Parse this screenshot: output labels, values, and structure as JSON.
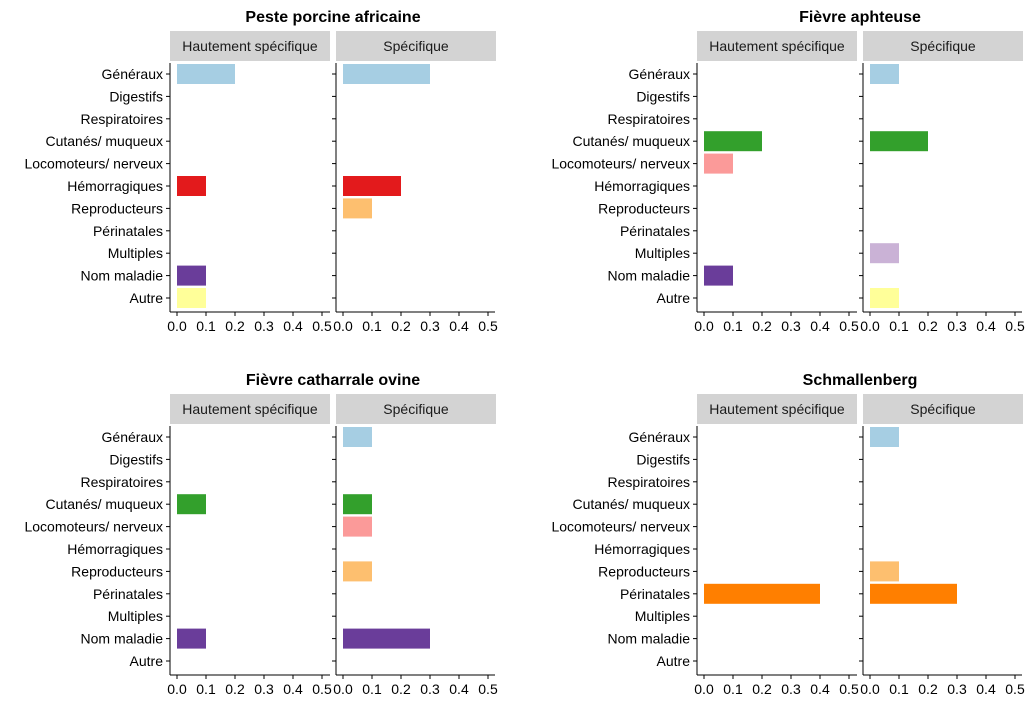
{
  "facets": {
    "left": "Hautement spécifique",
    "right": "Spécifique"
  },
  "categories": [
    "Généraux",
    "Digestifs",
    "Respiratoires",
    "Cutanés/ muqueux",
    "Locomoteurs/ nerveux",
    "Hémorragiques",
    "Reproducteurs",
    "Périnatales",
    "Multiples",
    "Nom maladie",
    "Autre"
  ],
  "colors": {
    "Généraux": "#a6cee3",
    "Digestifs": "#1f78b4",
    "Respiratoires": "#b2df8a",
    "Cutanés/ muqueux": "#33a02c",
    "Locomoteurs/ nerveux": "#fb9a99",
    "Hémorragiques": "#e31a1c",
    "Reproducteurs": "#fdbf6f",
    "Périnatales": "#ff7f00",
    "Multiples": "#cab2d6",
    "Nom maladie": "#6a3d9a",
    "Autre": "#ffff99"
  },
  "strip_color": "#d3d3d3",
  "chart_data": [
    {
      "type": "bar",
      "orientation": "horizontal",
      "title": "Peste porcine africaine",
      "xlim": [
        0,
        0.5
      ],
      "xticks": [
        "0.0",
        "0.1",
        "0.2",
        "0.3",
        "0.4",
        "0.5"
      ],
      "grid": false,
      "series": [
        {
          "name": "Hautement spécifique",
          "values": [
            0.2,
            0,
            0,
            0,
            0,
            0.1,
            0,
            0,
            0,
            0.1,
            0.1
          ]
        },
        {
          "name": "Spécifique",
          "values": [
            0.3,
            0,
            0,
            0,
            0,
            0.2,
            0.1,
            0,
            0,
            0,
            0
          ]
        }
      ]
    },
    {
      "type": "bar",
      "orientation": "horizontal",
      "title": "Fièvre aphteuse",
      "xlim": [
        0,
        0.5
      ],
      "xticks": [
        "0.0",
        "0.1",
        "0.2",
        "0.3",
        "0.4",
        "0.5"
      ],
      "grid": false,
      "series": [
        {
          "name": "Hautement spécifique",
          "values": [
            0,
            0,
            0,
            0.2,
            0.1,
            0,
            0,
            0,
            0,
            0.1,
            0
          ]
        },
        {
          "name": "Spécifique",
          "values": [
            0.1,
            0,
            0,
            0.2,
            0,
            0,
            0,
            0,
            0.1,
            0,
            0.1
          ]
        }
      ]
    },
    {
      "type": "bar",
      "orientation": "horizontal",
      "title": "Fièvre catharrale ovine",
      "xlim": [
        0,
        0.5
      ],
      "xticks": [
        "0.0",
        "0.1",
        "0.2",
        "0.3",
        "0.4",
        "0.5"
      ],
      "grid": false,
      "series": [
        {
          "name": "Hautement spécifique",
          "values": [
            0,
            0,
            0,
            0.1,
            0,
            0,
            0,
            0,
            0,
            0.1,
            0
          ]
        },
        {
          "name": "Spécifique",
          "values": [
            0.1,
            0,
            0,
            0.1,
            0.1,
            0,
            0.1,
            0,
            0,
            0.3,
            0
          ]
        }
      ]
    },
    {
      "type": "bar",
      "orientation": "horizontal",
      "title": "Schmallenberg",
      "xlim": [
        0,
        0.5
      ],
      "xticks": [
        "0.0",
        "0.1",
        "0.2",
        "0.3",
        "0.4",
        "0.5"
      ],
      "grid": false,
      "series": [
        {
          "name": "Hautement spécifique",
          "values": [
            0,
            0,
            0,
            0,
            0,
            0,
            0,
            0.4,
            0,
            0,
            0
          ]
        },
        {
          "name": "Spécifique",
          "values": [
            0.1,
            0,
            0,
            0,
            0,
            0,
            0.1,
            0.3,
            0,
            0,
            0
          ]
        }
      ]
    }
  ]
}
